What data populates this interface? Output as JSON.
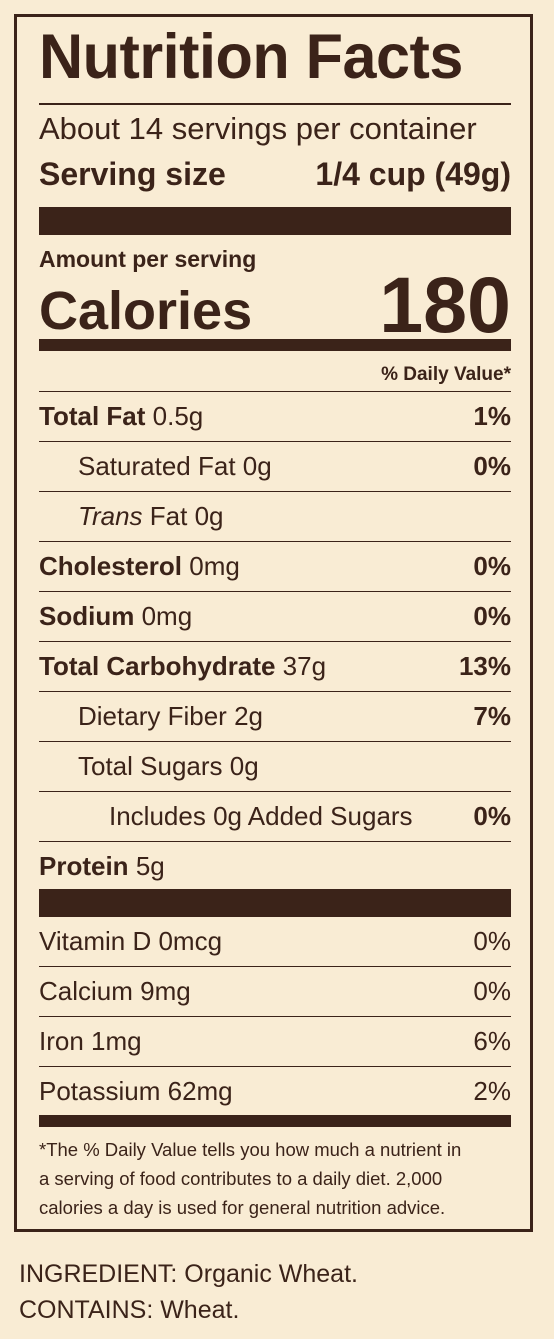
{
  "label": {
    "title": "Nutrition Facts",
    "servings_per_container": "About 14 servings per container",
    "serving_size_label": "Serving size",
    "serving_size_value": "1/4 cup (49g)",
    "amount_per_serving": "Amount per serving",
    "calories_label": "Calories",
    "calories_value": "180",
    "daily_value_header": "% Daily Value*",
    "nutrients": [
      {
        "name": "Total Fat",
        "amount": "0.5g",
        "dv": "1%"
      },
      {
        "name": "Saturated Fat",
        "amount": "0g",
        "dv": "0%"
      },
      {
        "name_italic": "Trans",
        "name": "Fat",
        "amount": "0g",
        "dv": ""
      },
      {
        "name": "Cholesterol",
        "amount": "0mg",
        "dv": "0%"
      },
      {
        "name": "Sodium",
        "amount": "0mg",
        "dv": "0%"
      },
      {
        "name": "Total Carbohydrate",
        "amount": "37g",
        "dv": "13%"
      },
      {
        "name": "Dietary Fiber",
        "amount": "2g",
        "dv": "7%"
      },
      {
        "name": "Total Sugars",
        "amount": "0g",
        "dv": ""
      },
      {
        "name": "Includes 0g Added Sugars",
        "dv": "0%"
      },
      {
        "name": "Protein",
        "amount": "5g"
      }
    ],
    "vitamins": [
      {
        "text": "Vitamin D 0mcg",
        "dv": "0%"
      },
      {
        "text": "Calcium 9mg",
        "dv": "0%"
      },
      {
        "text": "Iron 1mg",
        "dv": "6%"
      },
      {
        "text": "Potassium 62mg",
        "dv": "2%"
      }
    ],
    "footnote": [
      "*The % Daily Value tells you how much a nutrient in",
      "a serving of food contributes to a daily diet. 2,000",
      "calories a day is used for general nutrition advice."
    ]
  },
  "ingredient": "INGREDIENT: Organic Wheat.",
  "contains": "CONTAINS: Wheat.",
  "colors": {
    "background": "#f9ecd4",
    "ink": "#3b2319"
  }
}
